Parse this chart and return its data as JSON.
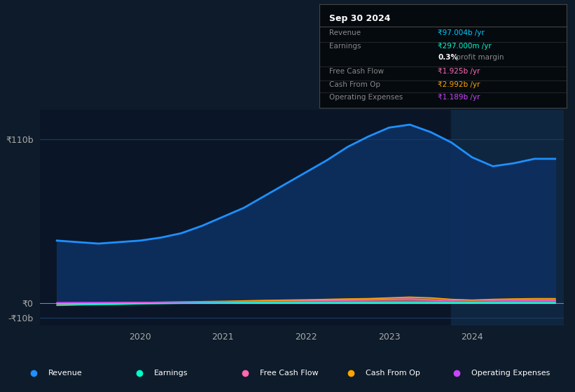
{
  "bg_color": "#0d1b2a",
  "chart_bg_color": "#0a1628",
  "grid_color": "#1e3a5f",
  "title": "Sep 30 2024",
  "x_years": [
    2019.0,
    2019.25,
    2019.5,
    2019.75,
    2020.0,
    2020.25,
    2020.5,
    2020.75,
    2021.0,
    2021.25,
    2021.5,
    2021.75,
    2022.0,
    2022.25,
    2022.5,
    2022.75,
    2023.0,
    2023.25,
    2023.5,
    2023.75,
    2024.0,
    2024.25,
    2024.5,
    2024.75,
    2025.0
  ],
  "revenue": [
    42,
    41,
    40,
    41,
    42,
    44,
    47,
    52,
    58,
    64,
    72,
    80,
    88,
    96,
    105,
    112,
    118,
    120,
    115,
    108,
    98,
    92,
    94,
    97,
    97
  ],
  "earnings": [
    -1.5,
    -1.2,
    -1.0,
    -0.8,
    -0.5,
    -0.3,
    -0.1,
    0.1,
    0.2,
    0.3,
    0.3,
    0.3,
    0.3,
    0.3,
    0.3,
    0.3,
    0.3,
    0.3,
    0.3,
    0.3,
    0.3,
    0.297,
    0.297,
    0.297,
    0.297
  ],
  "free_cash_flow": [
    -0.5,
    -0.4,
    -0.3,
    -0.2,
    -0.1,
    0.1,
    0.3,
    0.5,
    0.8,
    1.0,
    1.2,
    1.3,
    1.5,
    1.8,
    2.0,
    2.2,
    2.5,
    2.8,
    2.2,
    1.5,
    1.0,
    1.5,
    1.8,
    1.925,
    1.925
  ],
  "cash_from_op": [
    -0.3,
    -0.2,
    0.0,
    0.2,
    0.4,
    0.6,
    0.8,
    1.0,
    1.2,
    1.5,
    1.8,
    2.0,
    2.2,
    2.5,
    2.8,
    3.0,
    3.5,
    4.0,
    3.5,
    2.5,
    2.0,
    2.5,
    2.8,
    2.992,
    2.992
  ],
  "operating_expenses": [
    0.3,
    0.35,
    0.4,
    0.45,
    0.5,
    0.55,
    0.6,
    0.65,
    0.7,
    0.75,
    0.8,
    0.85,
    0.9,
    0.95,
    1.0,
    1.05,
    1.1,
    1.15,
    1.15,
    1.1,
    1.1,
    1.15,
    1.189,
    1.189,
    1.189
  ],
  "forecast_start": 2023.75,
  "ylim": [
    -15,
    130
  ],
  "yticks": [
    -10,
    0,
    110
  ],
  "ytick_labels": [
    "-₹10b",
    "₹0",
    "₹110b"
  ],
  "xticks": [
    2020,
    2021,
    2022,
    2023,
    2024
  ],
  "colors": {
    "revenue": "#1e90ff",
    "earnings": "#00ffcc",
    "free_cash_flow": "#ff69b4",
    "cash_from_op": "#ffa500",
    "operating_expenses": "#cc44ff"
  },
  "legend": [
    {
      "label": "Revenue",
      "color": "#1e90ff"
    },
    {
      "label": "Earnings",
      "color": "#00ffcc"
    },
    {
      "label": "Free Cash Flow",
      "color": "#ff69b4"
    },
    {
      "label": "Cash From Op",
      "color": "#ffa500"
    },
    {
      "label": "Operating Expenses",
      "color": "#cc44ff"
    }
  ],
  "info_box": {
    "title": "Sep 30 2024",
    "rows": [
      {
        "label": "Revenue",
        "value": "₹97.004b /yr",
        "value_color": "#00ccff"
      },
      {
        "label": "Earnings",
        "value": "₹297.000m /yr",
        "value_color": "#00ffcc"
      },
      {
        "label": "",
        "value": "0.3% profit margin",
        "value_color": "#aaaaaa"
      },
      {
        "label": "Free Cash Flow",
        "value": "₹1.925b /yr",
        "value_color": "#ff69b4"
      },
      {
        "label": "Cash From Op",
        "value": "₹2.992b /yr",
        "value_color": "#ffa500"
      },
      {
        "label": "Operating Expenses",
        "value": "₹1.189b /yr",
        "value_color": "#cc44ff"
      }
    ]
  }
}
